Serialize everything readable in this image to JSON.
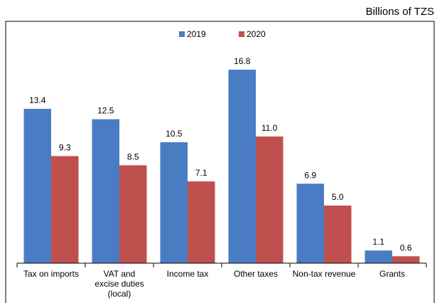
{
  "chart_data": {
    "type": "bar",
    "unit_label": "Billions of TZS",
    "categories": [
      "Tax on imports",
      "VAT and excise duties (local)",
      "Income tax",
      "Other taxes",
      "Non-tax revenue",
      "Grants"
    ],
    "series": [
      {
        "name": "2019",
        "color": "#4a7cc4",
        "values": [
          13.4,
          12.5,
          10.5,
          16.8,
          6.9,
          1.1
        ],
        "value_labels": [
          "13.4",
          "12.5",
          "10.5",
          "16.8",
          "6.9",
          "1.1"
        ]
      },
      {
        "name": "2020",
        "color": "#c0504d",
        "values": [
          9.3,
          8.5,
          7.1,
          11,
          5,
          0.6
        ],
        "value_labels": [
          "9.3",
          "8.5",
          "7.1",
          "11.0",
          "5.0",
          "0.6"
        ]
      }
    ],
    "ylim": [
      0,
      21
    ]
  }
}
